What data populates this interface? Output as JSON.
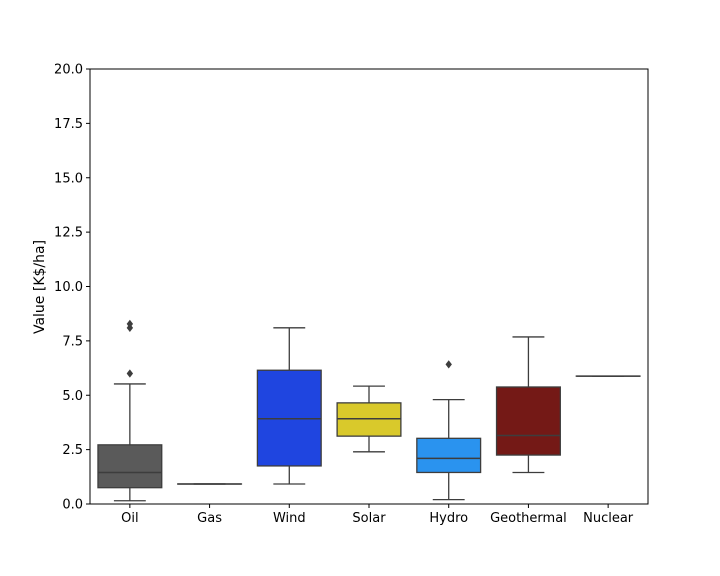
{
  "chart_data": {
    "type": "box",
    "title": "",
    "xlabel": "",
    "ylabel": "Value [K$/ha]",
    "ylim": [
      0,
      20
    ],
    "yticks": [
      "0.0",
      "2.5",
      "5.0",
      "7.5",
      "10.0",
      "12.5",
      "15.0",
      "17.5",
      "20.0"
    ],
    "grid": false,
    "categories": [
      "Oil",
      "Gas",
      "Wind",
      "Solar",
      "Hydro",
      "Geothermal",
      "Nuclear"
    ],
    "boxes": [
      {
        "category": "Oil",
        "color": "#5a5a5a",
        "whisker_low": 0.15,
        "q1": 0.75,
        "median": 1.45,
        "q3": 2.72,
        "whisker_high": 5.52,
        "outliers": [
          6.0,
          8.1,
          8.28
        ]
      },
      {
        "category": "Gas",
        "color": "#ff7f0e",
        "whisker_low": 0.92,
        "q1": 0.92,
        "median": 0.92,
        "q3": 0.92,
        "whisker_high": 0.92,
        "outliers": []
      },
      {
        "category": "Wind",
        "color": "#1f45e0",
        "whisker_low": 0.92,
        "q1": 1.75,
        "median": 3.92,
        "q3": 6.15,
        "whisker_high": 8.1,
        "outliers": []
      },
      {
        "category": "Solar",
        "color": "#d9c92b",
        "whisker_low": 2.4,
        "q1": 3.12,
        "median": 3.92,
        "q3": 4.65,
        "whisker_high": 5.42,
        "outliers": []
      },
      {
        "category": "Hydro",
        "color": "#2a93ef",
        "whisker_low": 0.2,
        "q1": 1.45,
        "median": 2.1,
        "q3": 3.02,
        "whisker_high": 4.8,
        "outliers": [
          6.42
        ]
      },
      {
        "category": "Geothermal",
        "color": "#741916",
        "whisker_low": 1.45,
        "q1": 2.25,
        "median": 3.15,
        "q3": 5.38,
        "whisker_high": 7.68,
        "outliers": []
      },
      {
        "category": "Nuclear",
        "color": "#2ca02c",
        "whisker_low": 5.88,
        "q1": 5.88,
        "median": 5.88,
        "q3": 5.88,
        "whisker_high": 5.88,
        "outliers": []
      }
    ]
  }
}
